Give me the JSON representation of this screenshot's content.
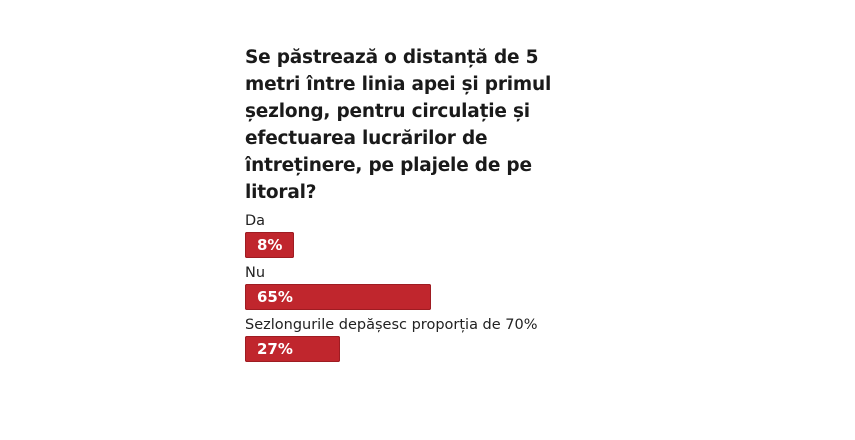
{
  "poll": {
    "question": "Se păstrează o distanță de 5 metri între linia apei și primul șezlong, pentru circulație și efectuarea lucrărilor de întreținere, pe plajele de pe litoral?"
  },
  "chart_data": {
    "type": "bar",
    "orientation": "horizontal",
    "title": "Se păstrează o distanță de 5 metri între linia apei și primul șezlong, pentru circulație și efectuarea lucrărilor de întreținere, pe plajele de pe litoral?",
    "categories": [
      "Da",
      "Nu",
      "Sezlongurile depășesc proporția de 70%"
    ],
    "values": [
      8,
      65,
      27
    ],
    "labels": [
      "8%",
      "65%",
      "27%"
    ],
    "unit": "%",
    "bar_color": "#c0262d",
    "grid": false
  }
}
